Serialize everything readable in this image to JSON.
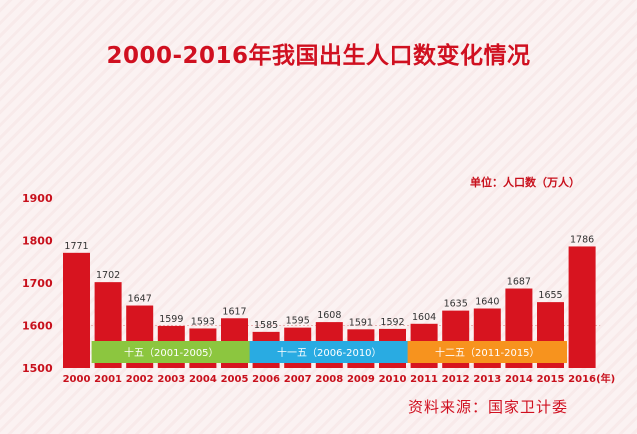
{
  "chart_data": {
    "type": "bar",
    "title": "2000-2016年我国出生人口数变化情况",
    "unit_label": "单位：人口数（万人）",
    "source": "资料来源：国家卫计委",
    "x_unit_suffix": "(年)",
    "categories": [
      "2000",
      "2001",
      "2002",
      "2003",
      "2004",
      "2005",
      "2006",
      "2007",
      "2008",
      "2009",
      "2010",
      "2011",
      "2012",
      "2013",
      "2014",
      "2015",
      "2016"
    ],
    "values": [
      1771,
      1702,
      1647,
      1599,
      1593,
      1617,
      1585,
      1595,
      1608,
      1591,
      1592,
      1604,
      1635,
      1640,
      1687,
      1655,
      1786
    ],
    "ylim": [
      1500,
      1900
    ],
    "yticks": [
      1500,
      1600,
      1700,
      1800,
      1900
    ],
    "periods": [
      {
        "label": "十五（2001-2005）",
        "start": 1,
        "end": 5,
        "color": "#8cc63f"
      },
      {
        "label": "十一五（2006-2010）",
        "start": 6,
        "end": 10,
        "color": "#29abe2"
      },
      {
        "label": "十二五（2011-2015）",
        "start": 11,
        "end": 15,
        "color": "#f7931e"
      }
    ],
    "bar_color": "#d7141f"
  }
}
